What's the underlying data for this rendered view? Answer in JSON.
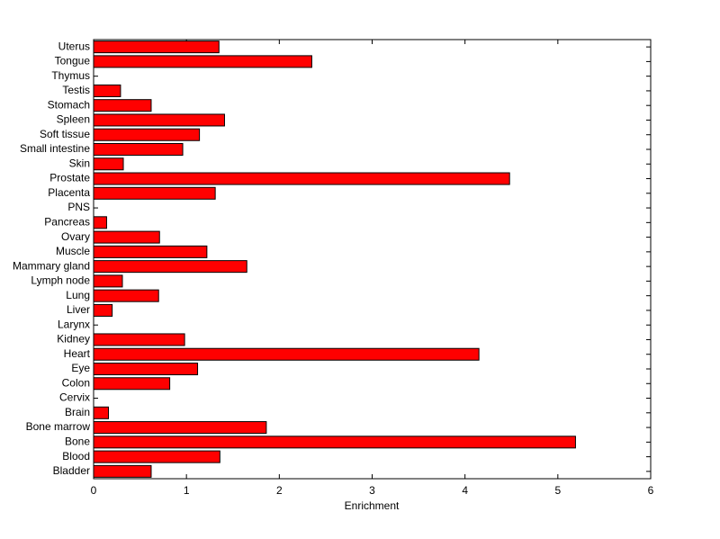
{
  "chart_data": {
    "type": "barh",
    "xlabel": "Enrichment",
    "color": "#ff0000",
    "categories": [
      "Uterus",
      "Tongue",
      "Thymus",
      "Testis",
      "Stomach",
      "Spleen",
      "Soft tissue",
      "Small intestine",
      "Skin",
      "Prostate",
      "Placenta",
      "PNS",
      "Pancreas",
      "Ovary",
      "Muscle",
      "Mammary gland",
      "Lymph node",
      "Lung",
      "Liver",
      "Larynx",
      "Kidney",
      "Heart",
      "Eye",
      "Colon",
      "Cervix",
      "Brain",
      "Bone marrow",
      "Bone",
      "Blood",
      "Bladder"
    ],
    "values": [
      1.35,
      2.35,
      0,
      0.29,
      0.62,
      1.41,
      1.14,
      0.96,
      0.32,
      4.48,
      1.31,
      0,
      0.14,
      0.71,
      1.22,
      1.65,
      0.31,
      0.7,
      0.2,
      0,
      0.98,
      4.15,
      1.12,
      0.82,
      0,
      0.16,
      1.86,
      5.19,
      1.36,
      0.62
    ],
    "xlim": [
      0,
      6
    ],
    "xticks": [
      0,
      1,
      2,
      3,
      4,
      5,
      6
    ]
  }
}
